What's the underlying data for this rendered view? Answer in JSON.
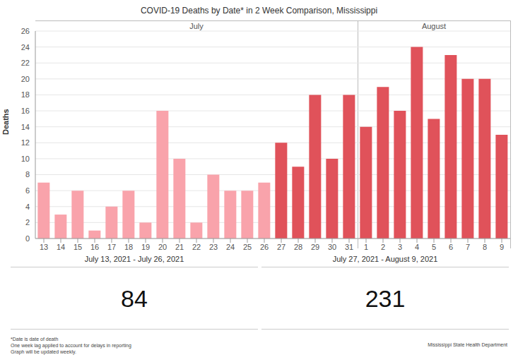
{
  "chart_data": {
    "type": "bar",
    "title": "COVID-19 Deaths by Date* in 2 Week Comparison, Mississippi",
    "y_label": "Deaths",
    "categories": [
      "13",
      "14",
      "15",
      "16",
      "17",
      "18",
      "19",
      "20",
      "21",
      "22",
      "23",
      "24",
      "25",
      "26",
      "27",
      "28",
      "29",
      "30",
      "31",
      "1",
      "2",
      "3",
      "4",
      "5",
      "6",
      "7",
      "8",
      "9"
    ],
    "values": [
      7,
      3,
      6,
      1,
      4,
      6,
      2,
      16,
      10,
      2,
      8,
      6,
      6,
      7,
      12,
      9,
      18,
      10,
      18,
      14,
      19,
      16,
      24,
      15,
      23,
      20,
      20,
      13
    ],
    "colors": [
      "#f9a3ab",
      "#f9a3ab",
      "#f9a3ab",
      "#f9a3ab",
      "#f9a3ab",
      "#f9a3ab",
      "#f9a3ab",
      "#f9a3ab",
      "#f9a3ab",
      "#f9a3ab",
      "#f9a3ab",
      "#f9a3ab",
      "#f9a3ab",
      "#f9a3ab",
      "#e0525a",
      "#e0525a",
      "#e0525a",
      "#e0525a",
      "#e0525a",
      "#e0525a",
      "#e0525a",
      "#e0525a",
      "#e0525a",
      "#e0525a",
      "#e0525a",
      "#e0525a",
      "#e0525a",
      "#e0525a"
    ],
    "ylim": [
      0,
      26
    ],
    "yticks": [
      0,
      2,
      4,
      6,
      8,
      10,
      12,
      14,
      16,
      18,
      20,
      22,
      24,
      26
    ],
    "grid": true,
    "x_groups": [
      {
        "label": "July",
        "count": 19
      },
      {
        "label": "August",
        "count": 9
      }
    ],
    "comparison": [
      {
        "label": "July 13, 2021 - July 26, 2021",
        "total": 84
      },
      {
        "label": "July 27, 2021 - August 9, 2021",
        "total": 231
      }
    ],
    "notes": [
      "*Date is date of death",
      "One week lag applied to account for delays in reporting",
      "Graph will be updated weekly."
    ],
    "source": "Mississippi State Health Department"
  }
}
